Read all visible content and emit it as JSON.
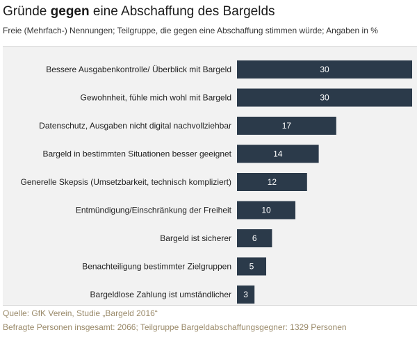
{
  "title": {
    "pre": "Gründe ",
    "bold": "gegen",
    "post": " eine Abschaffung des Bargelds"
  },
  "subtitle": "Freie (Mehrfach-) Nennungen; Teilgruppe, die gegen eine Abschaffung stimmen würde; Angaben in %",
  "chart_data": {
    "type": "bar",
    "orientation": "horizontal",
    "categories": [
      "Bessere Ausgabenkontrolle/ Überblick mit Bargeld",
      "Gewohnheit, fühle mich wohl mit Bargeld",
      "Datenschutz, Ausgaben nicht digital nachvollziehbar",
      "Bargeld in bestimmten Situationen besser geeignet",
      "Generelle Skepsis (Umsetzbarkeit, technisch kompliziert)",
      "Entmündigung/Einschränkung der Freiheit",
      "Bargeld ist sicherer",
      "Benachteiligung bestimmter Zielgruppen",
      "Bargeldlose Zahlung ist umständlicher"
    ],
    "values": [
      30,
      30,
      17,
      14,
      12,
      10,
      6,
      5,
      3
    ],
    "data_labels": [
      "30",
      "30",
      "17",
      "14",
      "12",
      "10",
      "6",
      "5",
      "3"
    ],
    "bar_color": "#2b3a4a",
    "label_color": "#ffffff",
    "background_color": "#f2f2f2",
    "grid": false,
    "legend": "none"
  },
  "footer": {
    "source": "Quelle: GfK Verein, Studie „Bargeld 2016“",
    "note": "Befragte Personen insgesamt: 2066; Teilgruppe Bargeldabschaffungsgegner: 1329 Personen"
  }
}
